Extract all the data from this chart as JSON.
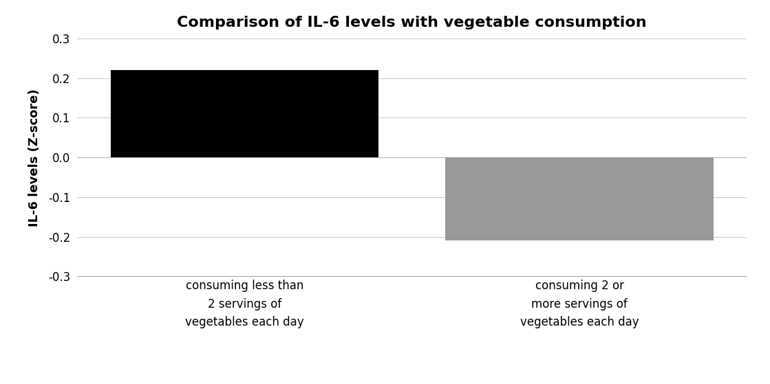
{
  "title": "Comparison of IL-6 levels with vegetable consumption",
  "categories": [
    "consuming less than\n2 servings of\nvegetables each day",
    "consuming 2 or\nmore servings of\nvegetables each day"
  ],
  "values": [
    0.22,
    -0.21
  ],
  "bar_colors": [
    "#000000",
    "#999999"
  ],
  "ylabel": "IL-6 levels (Z-score)",
  "ylim": [
    -0.3,
    0.3
  ],
  "yticks": [
    -0.3,
    -0.2,
    -0.1,
    0,
    0.1,
    0.2,
    0.3
  ],
  "title_fontsize": 16,
  "ylabel_fontsize": 13,
  "tick_fontsize": 12,
  "bar_width": 0.8,
  "background_color": "#ffffff",
  "xlim": [
    -0.5,
    1.5
  ]
}
